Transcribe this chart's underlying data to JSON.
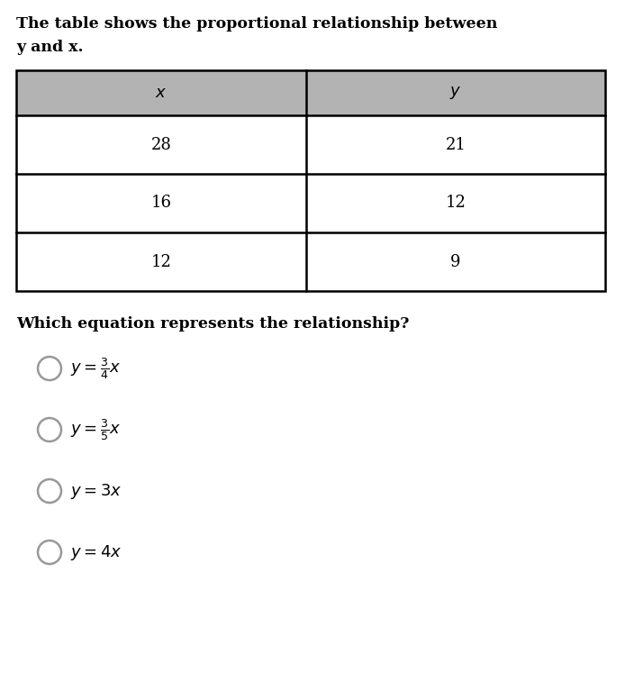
{
  "title_line1": "The table shows the proportional relationship between",
  "title_line2": "y and x.",
  "table_headers": [
    "x",
    "y"
  ],
  "table_rows": [
    [
      "28",
      "21"
    ],
    [
      "16",
      "12"
    ],
    [
      "12",
      "9"
    ]
  ],
  "question": "Which equation represents the relationship?",
  "option_labels": [
    "$y = \\frac{3}{4}x$",
    "$y = \\frac{3}{5}x$",
    "$y = 3x$",
    "$y = 4x$"
  ],
  "header_bg": "#b3b3b3",
  "table_border_color": "#000000",
  "text_color": "#000000",
  "bg_color": "#ffffff",
  "circle_edge_color": "#999999",
  "title_fontsize": 12.5,
  "table_fontsize": 13,
  "question_fontsize": 12.5,
  "option_fontsize": 13
}
